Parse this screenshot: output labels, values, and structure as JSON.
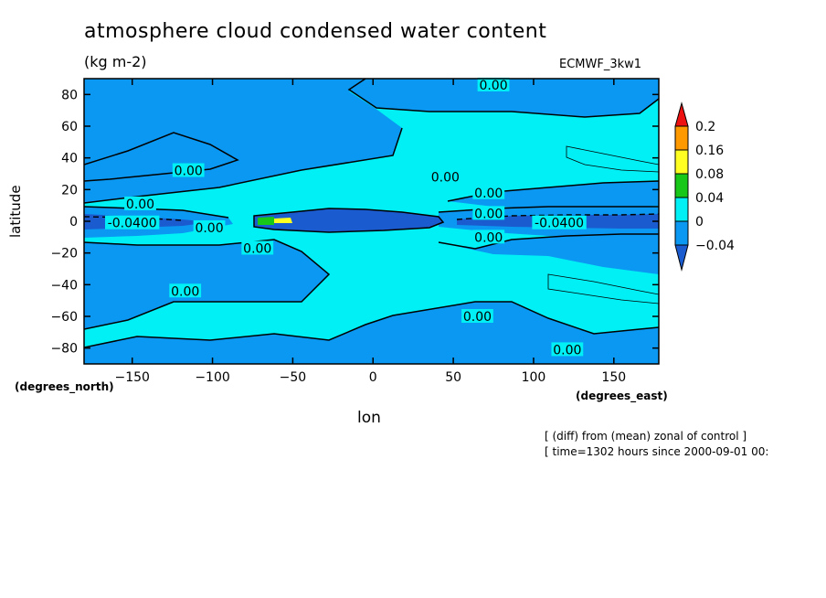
{
  "title": "atmosphere cloud condensed water content",
  "units": "(kg m-2)",
  "model_label": "ECMWF_3kw1",
  "footer": {
    "line1": "[ (diff) from (mean) zonal of control ]",
    "line2": "[ time=1302 hours since 2000-09-01 00:"
  },
  "colors": {
    "c_neg2": "#1a5ccf",
    "c_neg1": "#0a98f2",
    "c_zero": "#00f0f5",
    "c_p004": "#18c818",
    "c_p008": "#ffff22",
    "c_p016": "#ff9900",
    "c_p02": "#ee1111"
  },
  "chart_data": {
    "type": "contour",
    "title": "atmosphere cloud condensed water content",
    "subtitle": "(kg m-2)",
    "xlabel": "lon",
    "ylabel": "latitude",
    "x_coord_label": "(degrees_east)",
    "y_coord_label": "(degrees_north)",
    "xlim": [
      -180,
      178
    ],
    "ylim": [
      -90,
      90
    ],
    "x_ticks": [
      -150,
      -100,
      -50,
      0,
      50,
      100,
      150
    ],
    "y_ticks": [
      -80,
      -60,
      -40,
      -20,
      0,
      20,
      40,
      60,
      80
    ],
    "colorbar_levels": [
      "-0.04",
      "0",
      "0.04",
      "0.08",
      "0.16",
      "0.2"
    ],
    "contour_labels": [
      {
        "text": "0.00",
        "lon": 75,
        "lat": 86
      },
      {
        "text": "0.00",
        "lon": -115,
        "lat": 32
      },
      {
        "text": "0.00",
        "lon": 45,
        "lat": 28
      },
      {
        "text": "0.00",
        "lon": 72,
        "lat": 18
      },
      {
        "text": "0.00",
        "lon": -145,
        "lat": 11
      },
      {
        "text": "0.00",
        "lon": 72,
        "lat": 5
      },
      {
        "text": "0.00",
        "lon": -102,
        "lat": -4
      },
      {
        "text": "0.00",
        "lon": 72,
        "lat": -10
      },
      {
        "text": "0.00",
        "lon": -72,
        "lat": -17
      },
      {
        "text": "0.00",
        "lon": -117,
        "lat": -44
      },
      {
        "text": "0.00",
        "lon": 65,
        "lat": -60
      },
      {
        "text": "0.00",
        "lon": 121,
        "lat": -81
      },
      {
        "text": "-0.0400",
        "lon": -150,
        "lat": -1
      },
      {
        "text": "-0.0400",
        "lon": 116,
        "lat": -1
      }
    ]
  }
}
